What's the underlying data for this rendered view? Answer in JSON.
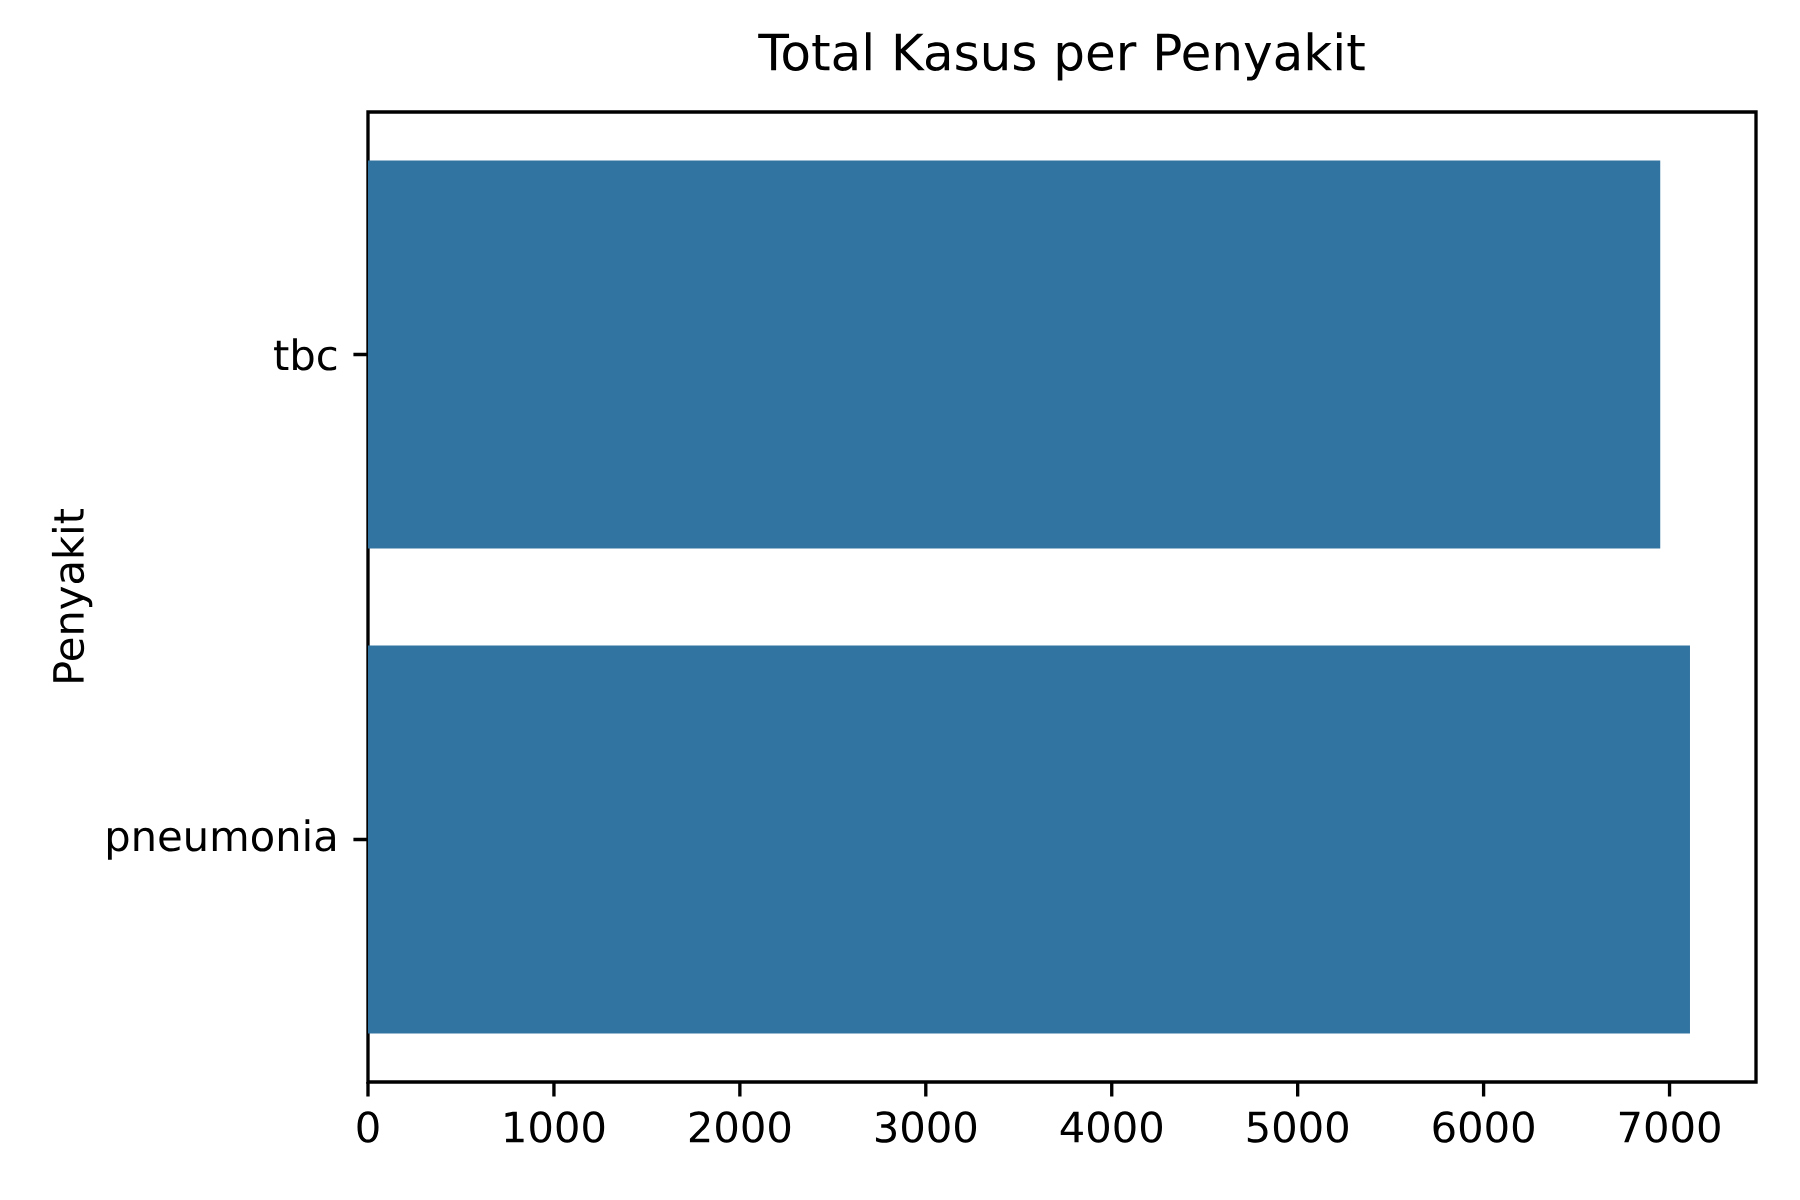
{
  "chart_data": {
    "type": "bar",
    "orientation": "horizontal",
    "title": "Total Kasus per Penyakit",
    "ylabel": "Penyakit",
    "categories": [
      "tbc",
      "pneumonia"
    ],
    "values": [
      6950,
      7110
    ],
    "color": "#3274a1",
    "xlim": [
      0,
      7465
    ],
    "xticks": [
      0,
      1000,
      2000,
      3000,
      4000,
      5000,
      6000,
      7000
    ]
  }
}
